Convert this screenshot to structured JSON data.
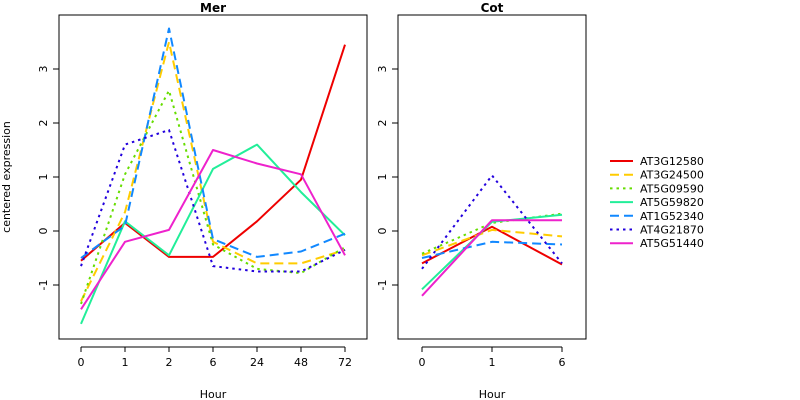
{
  "chart_data": [
    {
      "type": "line",
      "title": "Mer",
      "xlabel": "Hour",
      "ylabel": "centered expression",
      "categories": [
        "0",
        "1",
        "2",
        "6",
        "24",
        "48",
        "72"
      ],
      "ylim": [
        -2,
        4
      ],
      "yticks": [
        -1,
        0,
        1,
        2,
        3
      ],
      "series": [
        {
          "name": "AT3G12580",
          "color": "#ee0000",
          "dash": "solid",
          "values": [
            -0.55,
            0.15,
            -0.48,
            -0.48,
            0.18,
            0.95,
            3.45
          ]
        },
        {
          "name": "AT3G24500",
          "color": "#ffcc00",
          "dash": "long",
          "values": [
            -1.3,
            0.35,
            3.5,
            -0.2,
            -0.6,
            -0.6,
            -0.35
          ]
        },
        {
          "name": "AT5G09590",
          "color": "#66dd00",
          "dash": "dot",
          "values": [
            -1.35,
            1.05,
            2.6,
            -0.25,
            -0.7,
            -0.78,
            -0.3
          ]
        },
        {
          "name": "AT5G59820",
          "color": "#22ee99",
          "dash": "solid",
          "values": [
            -1.72,
            0.18,
            -0.45,
            1.15,
            1.6,
            0.72,
            -0.08
          ]
        },
        {
          "name": "AT1G52340",
          "color": "#1188ff",
          "dash": "long",
          "values": [
            -0.5,
            0.1,
            3.75,
            -0.15,
            -0.48,
            -0.38,
            -0.05
          ]
        },
        {
          "name": "AT4G21870",
          "color": "#2200dd",
          "dash": "dot",
          "values": [
            -0.65,
            1.6,
            1.87,
            -0.65,
            -0.75,
            -0.75,
            -0.35
          ]
        },
        {
          "name": "AT5G51440",
          "color": "#ee22cc",
          "dash": "solid",
          "values": [
            -1.45,
            -0.2,
            0.02,
            1.5,
            1.25,
            1.05,
            -0.45
          ]
        }
      ]
    },
    {
      "type": "line",
      "title": "Cot",
      "xlabel": "Hour",
      "ylabel": "",
      "categories": [
        "0",
        "1",
        "6"
      ],
      "ylim": [
        -2,
        4
      ],
      "yticks": [
        -1,
        0,
        1,
        2,
        3
      ],
      "series": [
        {
          "name": "AT3G12580",
          "color": "#ee0000",
          "dash": "solid",
          "values": [
            -0.6,
            0.08,
            -0.62
          ]
        },
        {
          "name": "AT3G24500",
          "color": "#ffcc00",
          "dash": "long",
          "values": [
            -0.45,
            0.02,
            -0.1
          ]
        },
        {
          "name": "AT5G09590",
          "color": "#66dd00",
          "dash": "dot",
          "values": [
            -0.42,
            0.15,
            0.32
          ]
        },
        {
          "name": "AT5G59820",
          "color": "#22ee99",
          "dash": "solid",
          "values": [
            -1.08,
            0.17,
            0.3
          ]
        },
        {
          "name": "AT1G52340",
          "color": "#1188ff",
          "dash": "long",
          "values": [
            -0.5,
            -0.2,
            -0.25
          ]
        },
        {
          "name": "AT4G21870",
          "color": "#2200dd",
          "dash": "dot",
          "values": [
            -0.7,
            1.03,
            -0.6
          ]
        },
        {
          "name": "AT5G51440",
          "color": "#ee22cc",
          "dash": "solid",
          "values": [
            -1.2,
            0.2,
            0.2
          ]
        }
      ]
    }
  ],
  "legend": {
    "placement": "right",
    "items": [
      {
        "name": "AT3G12580",
        "color": "#ee0000",
        "dash": "solid"
      },
      {
        "name": "AT3G24500",
        "color": "#ffcc00",
        "dash": "long"
      },
      {
        "name": "AT5G09590",
        "color": "#66dd00",
        "dash": "dot"
      },
      {
        "name": "AT5G59820",
        "color": "#22ee99",
        "dash": "solid"
      },
      {
        "name": "AT1G52340",
        "color": "#1188ff",
        "dash": "long"
      },
      {
        "name": "AT4G21870",
        "color": "#2200dd",
        "dash": "dot"
      },
      {
        "name": "AT5G51440",
        "color": "#ee22cc",
        "dash": "solid"
      }
    ]
  }
}
